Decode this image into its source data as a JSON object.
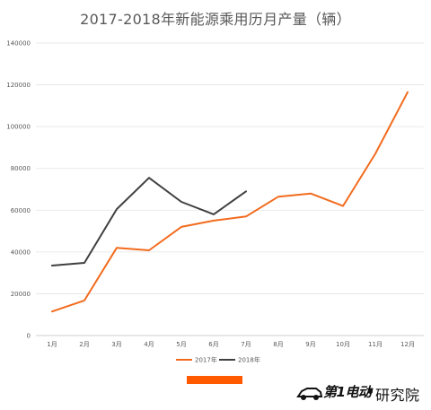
{
  "chart_data": {
    "type": "line",
    "title": "2017-2018年新能源乘用历月产量（辆）",
    "categories": [
      "1月",
      "2月",
      "3月",
      "4月",
      "5月",
      "6月",
      "7月",
      "8月",
      "9月",
      "10月",
      "11月",
      "12月"
    ],
    "series": [
      {
        "name": "2017年",
        "color": "#f26b1d",
        "values": [
          11500,
          16800,
          42000,
          40800,
          52000,
          55000,
          57000,
          66500,
          68000,
          62000,
          87000,
          116500
        ]
      },
      {
        "name": "2018年",
        "color": "#404040",
        "values": [
          33500,
          34800,
          60500,
          75500,
          64000,
          58000,
          69000,
          null,
          null,
          null,
          null,
          null
        ]
      }
    ],
    "yticks": [
      0,
      20000,
      40000,
      60000,
      80000,
      100000,
      120000,
      140000
    ],
    "ylim": [
      0,
      140000
    ],
    "grid": true,
    "legend_position": "bottom"
  },
  "decor": {
    "accent_color": "#ff5a00",
    "brand_word": "第1电动",
    "brand_small": "www.d1ev.com",
    "brand_suffix": "研究院",
    "brand_icon": "car-logo-icon"
  }
}
